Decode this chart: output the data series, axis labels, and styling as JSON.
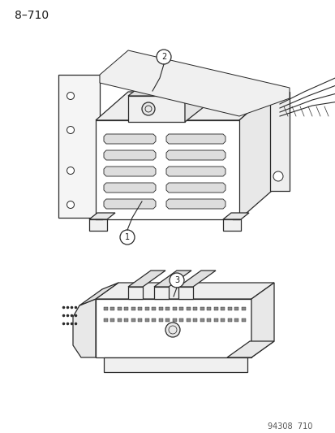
{
  "title": "8–710",
  "footer": "94308  710",
  "bg_color": "#ffffff",
  "text_color": "#1a1a1a",
  "title_fontsize": 10,
  "footer_fontsize": 7,
  "label1": "1",
  "label2": "2",
  "label3": "3",
  "lw": 0.9,
  "draw_color": "#2a2a2a"
}
